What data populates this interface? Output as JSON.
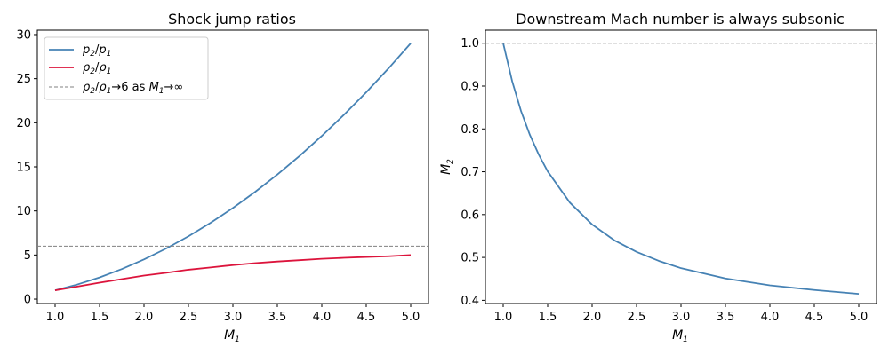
{
  "chart_data": [
    {
      "type": "line",
      "title": "Shock jump ratios",
      "xlabel": "M1",
      "ylabel": "",
      "xlim": [
        0.8,
        5.2
      ],
      "ylim": [
        -0.5,
        30.5
      ],
      "xticks": [
        "1.0",
        "1.5",
        "2.0",
        "2.5",
        "3.0",
        "3.5",
        "4.0",
        "4.5",
        "5.0"
      ],
      "yticks": [
        "0",
        "5",
        "10",
        "15",
        "20",
        "25",
        "30"
      ],
      "legend_position": "top-left",
      "grid": false,
      "series": [
        {
          "name": "p2/p1",
          "color": "#4682b4",
          "x": [
            1.0,
            1.25,
            1.5,
            1.75,
            2.0,
            2.25,
            2.5,
            2.75,
            3.0,
            3.25,
            3.5,
            3.75,
            4.0,
            4.25,
            4.5,
            4.75,
            5.0
          ],
          "y": [
            1.0,
            1.656,
            2.458,
            3.406,
            4.5,
            5.74,
            7.125,
            8.656,
            10.333,
            12.156,
            14.125,
            16.24,
            18.5,
            20.906,
            23.458,
            26.156,
            29.0
          ]
        },
        {
          "name": "ρ2/ρ1",
          "color": "#dc143c",
          "x": [
            1.0,
            1.25,
            1.5,
            1.75,
            2.0,
            2.25,
            2.5,
            2.75,
            3.0,
            3.25,
            3.5,
            3.75,
            4.0,
            4.25,
            4.5,
            4.75,
            5.0
          ],
          "y": [
            1.0,
            1.426,
            1.862,
            2.268,
            2.667,
            2.987,
            3.333,
            3.586,
            3.857,
            4.079,
            4.261,
            4.412,
            4.571,
            4.68,
            4.777,
            4.863,
            5.0
          ]
        },
        {
          "name": "ρ2/ρ1 → 6 as M1 → ∞",
          "color": "#808080",
          "dashed": true,
          "y": 6
        }
      ]
    },
    {
      "type": "line",
      "title": "Downstream Mach number is always subsonic",
      "xlabel": "M1",
      "ylabel": "M2",
      "xlim": [
        0.8,
        5.2
      ],
      "ylim": [
        0.3925,
        1.0305
      ],
      "xticks": [
        "1.0",
        "1.5",
        "2.0",
        "2.5",
        "3.0",
        "3.5",
        "4.0",
        "4.5",
        "5.0"
      ],
      "yticks": [
        "0.4",
        "0.5",
        "0.6",
        "0.7",
        "0.8",
        "0.9",
        "1.0"
      ],
      "grid": false,
      "series": [
        {
          "name": "",
          "color": "#4682b4",
          "x": [
            1.0,
            1.1,
            1.2,
            1.3,
            1.4,
            1.5,
            1.75,
            2.0,
            2.25,
            2.5,
            2.75,
            3.0,
            3.5,
            4.0,
            4.5,
            5.0
          ],
          "y": [
            1.0,
            0.912,
            0.842,
            0.786,
            0.74,
            0.701,
            0.628,
            0.577,
            0.54,
            0.513,
            0.492,
            0.475,
            0.451,
            0.435,
            0.424,
            0.415
          ]
        },
        {
          "name": "",
          "color": "#808080",
          "dashed": true,
          "y": 1.0
        }
      ]
    }
  ]
}
